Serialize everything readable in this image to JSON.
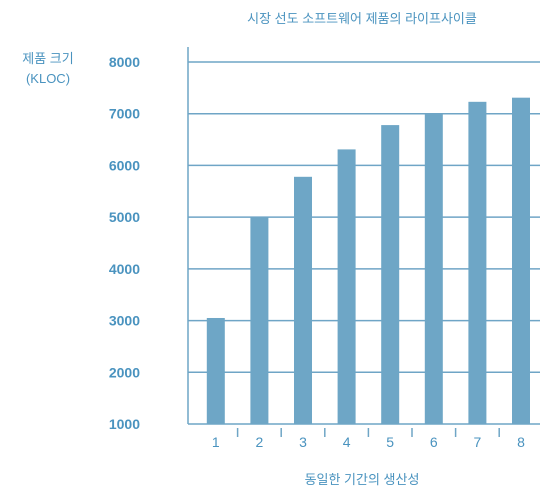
{
  "chart_data": {
    "type": "bar",
    "title": "시장 선도 소프트웨어 제품의 라이프사이클",
    "ylabel_line1": "제품 크기",
    "ylabel_line2": "(KLOC)",
    "xlabel": "동일한 기간의 생산성",
    "categories": [
      "1",
      "2",
      "3",
      "4",
      "5",
      "6",
      "7",
      "8"
    ],
    "values": [
      3050,
      5000,
      5780,
      6310,
      6780,
      7000,
      7230,
      7310
    ],
    "yticks": [
      "8000",
      "7000",
      "6000",
      "5000",
      "4000",
      "3000",
      "2000",
      "1000"
    ],
    "ylim": [
      1000,
      8000
    ],
    "grid": true,
    "colors": {
      "bar": "#6ea6c6",
      "text": "#4a93bf",
      "grid": "#6fa5c6"
    }
  }
}
